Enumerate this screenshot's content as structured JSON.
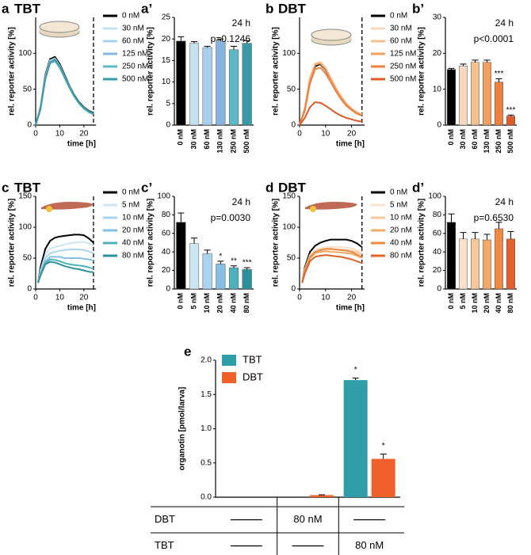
{
  "chart_data": [
    {
      "type": "line",
      "panel": "a",
      "title": "TBT",
      "ylabel": "rel. reporter activity [%]",
      "xlabel": "time [h]",
      "x": [
        0,
        2,
        4,
        6,
        8,
        10,
        12,
        14,
        16,
        18,
        20,
        22,
        24
      ],
      "xlim": [
        0,
        25
      ],
      "xticks": [
        0,
        10,
        20
      ],
      "ylim": [
        0,
        150
      ],
      "yticks": [
        0,
        50,
        100
      ],
      "vline": 24,
      "series": [
        {
          "name": "0 nM",
          "color": "#000000",
          "values": [
            0,
            25,
            70,
            92,
            95,
            85,
            70,
            55,
            42,
            32,
            25,
            20,
            17
          ]
        },
        {
          "name": "30 nM",
          "color": "#c6e0f0",
          "values": [
            0,
            24,
            68,
            90,
            93,
            83,
            68,
            54,
            41,
            31,
            24,
            19,
            16
          ]
        },
        {
          "name": "60 nM",
          "color": "#a8d0ec",
          "values": [
            0,
            24,
            67,
            89,
            92,
            83,
            68,
            54,
            41,
            31,
            24,
            19,
            16
          ]
        },
        {
          "name": "125 nM",
          "color": "#86b4e0",
          "values": [
            0,
            23,
            66,
            88,
            92,
            82,
            67,
            53,
            40,
            31,
            24,
            19,
            16
          ]
        },
        {
          "name": "250 nM",
          "color": "#5fb8c6",
          "values": [
            0,
            22,
            64,
            86,
            89,
            80,
            66,
            52,
            40,
            30,
            23,
            18,
            15
          ]
        },
        {
          "name": "500 nM",
          "color": "#3a9aa8",
          "values": [
            0,
            23,
            65,
            87,
            91,
            82,
            67,
            53,
            41,
            31,
            24,
            19,
            16
          ]
        }
      ]
    },
    {
      "type": "bar",
      "panel": "a’",
      "ylabel": "rel. reporter activity [%]",
      "categories": [
        "0 nM",
        "30 nM",
        "60 nM",
        "130 nM",
        "250 nM",
        "500 nM"
      ],
      "values": [
        19.5,
        19,
        18,
        19.5,
        17.5,
        19
      ],
      "errors": [
        1,
        0.4,
        0.3,
        0.5,
        0.8,
        0.6
      ],
      "colors": [
        "#000000",
        "#c6e0f0",
        "#a8d0ec",
        "#86b4e0",
        "#5fb8c6",
        "#3a9aa8"
      ],
      "ylim": [
        0,
        25
      ],
      "yticks": [
        0,
        5,
        10,
        15,
        20,
        25
      ],
      "annotations": [
        "24 h",
        "p=0.1246"
      ],
      "significance": [
        null,
        null,
        null,
        null,
        null,
        null
      ]
    },
    {
      "type": "line",
      "panel": "b",
      "title": "DBT",
      "ylabel": "rel. reporter activity [%]",
      "xlabel": "time [h]",
      "x": [
        0,
        2,
        4,
        6,
        8,
        10,
        12,
        14,
        16,
        18,
        20,
        22,
        24
      ],
      "xlim": [
        0,
        25
      ],
      "xticks": [
        0,
        10,
        20
      ],
      "ylim": [
        0,
        150
      ],
      "yticks": [
        0,
        50,
        100
      ],
      "vline": 24,
      "series": [
        {
          "name": "0 nM",
          "color": "#000000",
          "values": [
            0,
            22,
            62,
            82,
            85,
            77,
            64,
            50,
            38,
            29,
            22,
            17,
            14
          ]
        },
        {
          "name": "30 nM",
          "color": "#f9d8c0",
          "values": [
            0,
            24,
            66,
            86,
            88,
            80,
            66,
            52,
            40,
            30,
            23,
            18,
            15
          ]
        },
        {
          "name": "60 nM",
          "color": "#f5c090",
          "values": [
            0,
            23,
            65,
            85,
            87,
            79,
            65,
            51,
            39,
            30,
            23,
            18,
            15
          ]
        },
        {
          "name": "125 nM",
          "color": "#f0a060",
          "values": [
            0,
            23,
            64,
            84,
            86,
            78,
            64,
            50,
            39,
            29,
            22,
            17,
            14
          ]
        },
        {
          "name": "250 nM",
          "color": "#ee8040",
          "values": [
            0,
            20,
            58,
            78,
            80,
            72,
            60,
            47,
            36,
            27,
            21,
            16,
            13
          ]
        },
        {
          "name": "500 nM",
          "color": "#e05a28",
          "values": [
            0,
            10,
            25,
            32,
            31,
            27,
            22,
            17,
            13,
            10,
            8,
            6,
            5
          ]
        }
      ]
    },
    {
      "type": "bar",
      "panel": "b’",
      "ylabel": "rel. reporter activity [%]",
      "categories": [
        "0 nM",
        "30 nM",
        "60 nM",
        "130 nM",
        "250 nM",
        "500 nM"
      ],
      "values": [
        15.5,
        16.5,
        17.5,
        17.5,
        12,
        2.5
      ],
      "errors": [
        0.3,
        0.5,
        0.6,
        0.6,
        0.9,
        0.3
      ],
      "colors": [
        "#000000",
        "#f9d8c0",
        "#f5c090",
        "#f0a060",
        "#ee8040",
        "#e05a28"
      ],
      "ylim": [
        0,
        30
      ],
      "yticks": [
        0,
        10,
        20,
        30
      ],
      "annotations": [
        "24 h",
        "p<0.0001"
      ],
      "significance": [
        null,
        null,
        null,
        null,
        "***",
        "***"
      ]
    },
    {
      "type": "line",
      "panel": "c",
      "title": "TBT",
      "ylabel": "rel. reporter activity [%]",
      "xlabel": "time [h]",
      "x": [
        1,
        2,
        4,
        6,
        8,
        10,
        12,
        14,
        16,
        18,
        20,
        22,
        24
      ],
      "xlim": [
        0,
        25
      ],
      "xticks": [
        0,
        10,
        20
      ],
      "ylim": [
        0,
        150
      ],
      "yticks": [
        0,
        50,
        100,
        150
      ],
      "vline": 24,
      "series": [
        {
          "name": "0 nM",
          "color": "#000000",
          "values": [
            10,
            35,
            65,
            78,
            83,
            85,
            86,
            87,
            88,
            88,
            87,
            82,
            75
          ]
        },
        {
          "name": "5 nM",
          "color": "#cde6f5",
          "values": [
            10,
            30,
            55,
            65,
            68,
            70,
            72,
            74,
            75,
            76,
            76,
            74,
            70
          ]
        },
        {
          "name": "10 nM",
          "color": "#a9d3ee",
          "values": [
            10,
            28,
            50,
            58,
            60,
            62,
            63,
            64,
            64,
            64,
            63,
            61,
            58
          ]
        },
        {
          "name": "20 nM",
          "color": "#86bfe4",
          "values": [
            10,
            25,
            45,
            52,
            52,
            52,
            50,
            50,
            50,
            50,
            49,
            48,
            46
          ]
        },
        {
          "name": "40 nM",
          "color": "#4fb1bc",
          "values": [
            10,
            24,
            42,
            48,
            47,
            45,
            42,
            40,
            39,
            38,
            37,
            35,
            33
          ]
        },
        {
          "name": "80 nM",
          "color": "#2e8f9c",
          "values": [
            10,
            22,
            40,
            44,
            43,
            40,
            37,
            35,
            33,
            32,
            30,
            28,
            27
          ]
        }
      ]
    },
    {
      "type": "bar",
      "panel": "c’",
      "ylabel": "rel. reporter activity [%]",
      "categories": [
        "0 nM",
        "5 nM",
        "10 nM",
        "20 nM",
        "40 nM",
        "80 nM"
      ],
      "values": [
        72,
        49,
        38,
        27,
        23,
        21
      ],
      "errors": [
        10,
        6,
        4,
        3,
        2,
        2
      ],
      "colors": [
        "#000000",
        "#cde6f5",
        "#a9d3ee",
        "#86bfe4",
        "#4fb1bc",
        "#2e8f9c"
      ],
      "ylim": [
        0,
        100
      ],
      "yticks": [
        0,
        20,
        40,
        60,
        80,
        100
      ],
      "annotations": [
        "24 h",
        "p=0.0030"
      ],
      "significance": [
        null,
        null,
        null,
        "*",
        "**",
        "***"
      ]
    },
    {
      "type": "line",
      "panel": "d",
      "title": "DBT",
      "ylabel": "rel. reporter activity [%]",
      "xlabel": "time [h]",
      "x": [
        1,
        2,
        4,
        6,
        8,
        10,
        12,
        14,
        16,
        18,
        20,
        22,
        24
      ],
      "xlim": [
        0,
        25
      ],
      "xticks": [
        0,
        10,
        20
      ],
      "ylim": [
        0,
        150
      ],
      "yticks": [
        0,
        50,
        100,
        150
      ],
      "vline": 24,
      "series": [
        {
          "name": "0 nM",
          "color": "#000000",
          "values": [
            10,
            35,
            60,
            70,
            75,
            78,
            80,
            80,
            80,
            80,
            78,
            74,
            68
          ]
        },
        {
          "name": "5 nM",
          "color": "#fbe0cc",
          "values": [
            10,
            32,
            55,
            63,
            66,
            68,
            68,
            68,
            68,
            67,
            66,
            63,
            60
          ]
        },
        {
          "name": "10 nM",
          "color": "#f7c79c",
          "values": [
            10,
            30,
            52,
            60,
            63,
            64,
            64,
            64,
            64,
            63,
            62,
            60,
            56
          ]
        },
        {
          "name": "20 nM",
          "color": "#f3a868",
          "values": [
            10,
            28,
            50,
            58,
            60,
            61,
            60,
            60,
            59,
            58,
            57,
            54,
            50
          ]
        },
        {
          "name": "40 nM",
          "color": "#ef8a44",
          "values": [
            10,
            28,
            52,
            60,
            63,
            65,
            65,
            64,
            63,
            62,
            60,
            56,
            52
          ]
        },
        {
          "name": "80 nM",
          "color": "#e2622c",
          "values": [
            10,
            25,
            45,
            52,
            54,
            55,
            54,
            53,
            52,
            50,
            48,
            45,
            42
          ]
        }
      ]
    },
    {
      "type": "bar",
      "panel": "d’",
      "ylabel": "rel. reporter activity [%]",
      "categories": [
        "0 nM",
        "5 nM",
        "10 nM",
        "20 nM",
        "40 nM",
        "80 nM"
      ],
      "values": [
        72,
        54,
        54,
        53,
        65,
        54
      ],
      "errors": [
        9,
        7,
        7,
        6,
        7,
        8
      ],
      "colors": [
        "#000000",
        "#fbe0cc",
        "#f7c79c",
        "#f3a868",
        "#ef8a44",
        "#e2622c"
      ],
      "ylim": [
        0,
        100
      ],
      "yticks": [
        0,
        20,
        40,
        60,
        80,
        100
      ],
      "annotations": [
        "24 h",
        "p=0.6530"
      ],
      "significance": [
        null,
        null,
        null,
        null,
        null,
        null
      ]
    },
    {
      "type": "bar",
      "panel": "e",
      "ylabel": "organotin [pmol/larva]",
      "categories": [
        null,
        null,
        null
      ],
      "ylim": [
        0,
        2
      ],
      "yticks": [
        {
          "value": 0,
          "label": "0.0"
        },
        {
          "value": 0.5,
          "label": "0.5"
        },
        {
          "value": 1,
          "label": "1.0"
        },
        {
          "value": 1.5,
          "label": "1.5"
        },
        {
          "value": 2,
          "label": "2.0"
        }
      ],
      "series": [
        {
          "name": "TBT",
          "color": "#2f9ea8",
          "values": [
            0,
            0,
            1.71
          ],
          "errors": [
            0,
            0,
            0.03
          ],
          "significance": [
            null,
            null,
            "*"
          ]
        },
        {
          "name": "DBT",
          "color": "#f0602a",
          "values": [
            0,
            0.03,
            0.56
          ],
          "errors": [
            0,
            0.005,
            0.07
          ],
          "significance": [
            null,
            null,
            "*"
          ]
        }
      ],
      "table_rows": [
        {
          "label": "DBT",
          "cells": [
            null,
            "80 nM",
            null
          ]
        },
        {
          "label": "TBT",
          "cells": [
            null,
            null,
            "80 nM"
          ]
        }
      ]
    }
  ]
}
